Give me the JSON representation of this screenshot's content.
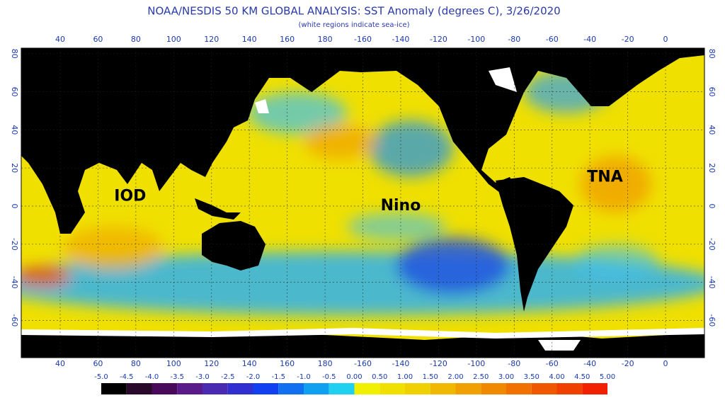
{
  "header": {
    "title": "NOAA/NESDIS 50 KM GLOBAL ANALYSIS: SST Anomaly (degrees C), 3/26/2020",
    "subtitle": "(white regions indicate sea-ice)"
  },
  "map": {
    "lon_labels": [
      40,
      60,
      80,
      100,
      120,
      140,
      160,
      180,
      -160,
      -140,
      -120,
      -100,
      -80,
      -60,
      -40,
      -20,
      0
    ],
    "lat_labels": [
      80,
      60,
      40,
      20,
      0,
      -20,
      -40,
      -60
    ],
    "regions": [
      {
        "label": "IOD",
        "lon": 77,
        "lat": 5
      },
      {
        "label": "Nino",
        "lon": -140,
        "lat": 0
      },
      {
        "label": "TNA",
        "lon": -32,
        "lat": 15
      }
    ]
  },
  "colorbar": {
    "labels": [
      "-5.0",
      "-4.5",
      "-4.0",
      "-3.5",
      "-3.0",
      "-2.5",
      "-2.0",
      "-1.5",
      "-1.0",
      "-0.5",
      "0.00",
      "0.50",
      "1.00",
      "1.50",
      "2.00",
      "2.50",
      "3.00",
      "3.50",
      "4.00",
      "4.50",
      "5.00"
    ],
    "colors": [
      "#000000",
      "#2a0a2a",
      "#4a0a5a",
      "#5a1a8a",
      "#4a2ab0",
      "#3030d0",
      "#1040f0",
      "#1070f0",
      "#10a0f0",
      "#20d0f0",
      "#f0f000",
      "#f0e000",
      "#f0d000",
      "#f0b800",
      "#f0a000",
      "#f08800",
      "#f07000",
      "#f05800",
      "#f04000",
      "#f02000"
    ]
  }
}
